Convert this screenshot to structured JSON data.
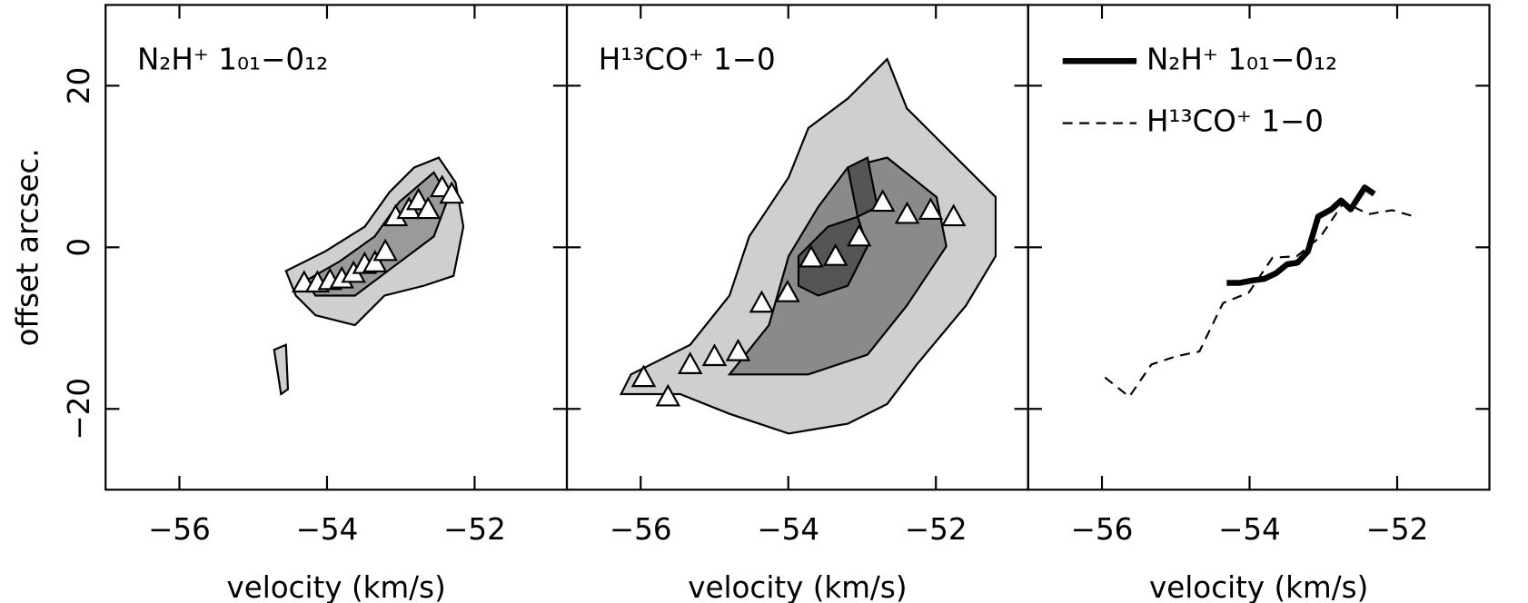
{
  "chart_data": [
    {
      "type": "scatter",
      "annotation": "N₂H⁺ 1₀₁−0₁₂",
      "xlabel": "velocity (km/s)",
      "ylabel": "offset arcsec.",
      "x": [
        -54.31,
        -54.13,
        -53.96,
        -53.8,
        -53.64,
        -53.49,
        -53.35,
        -53.21,
        -53.07,
        -52.89,
        -52.76,
        -52.63,
        -52.44,
        -52.31
      ],
      "values": [
        -4.4,
        -4.4,
        -4.1,
        -3.9,
        -3.2,
        -2.1,
        -1.9,
        -0.5,
        3.8,
        4.7,
        5.8,
        4.7,
        7.4,
        6.6
      ],
      "marker": "triangle",
      "color": "#ffffff",
      "xlim": [
        -57,
        -50.75
      ],
      "xticks": [
        {
          "value": -56,
          "label": "−56"
        },
        {
          "value": -54,
          "label": "−54"
        },
        {
          "value": -52,
          "label": "−52"
        }
      ],
      "ylim": [
        -30,
        30
      ],
      "yticks": [
        {
          "value": -20,
          "label": "−20"
        },
        0,
        20
      ]
    },
    {
      "type": "scatter",
      "annotation": "H¹³CO⁺ 1−0",
      "xlabel": "velocity (km/s)",
      "x": [
        -55.96,
        -55.63,
        -55.33,
        -55.0,
        -54.68,
        -54.36,
        -54.01,
        -53.69,
        -53.36,
        -53.04,
        -52.72,
        -52.39,
        -52.07,
        -51.76
      ],
      "values": [
        -16.1,
        -18.5,
        -14.5,
        -13.5,
        -12.9,
        -6.9,
        -5.6,
        -1.3,
        -1.1,
        1.3,
        5.6,
        4.1,
        4.6,
        3.8
      ],
      "marker": "triangle",
      "color": "#ffffff",
      "xlim": [
        -57,
        -50.75
      ],
      "xticks": [
        {
          "value": -56,
          "label": "−56"
        },
        {
          "value": -54,
          "label": "−54"
        },
        {
          "value": -52,
          "label": "−52"
        }
      ],
      "ylim": [
        -30,
        30
      ],
      "yticks": [
        -20,
        0,
        20
      ]
    },
    {
      "type": "line",
      "xlabel": "velocity (km/s)",
      "legend": "upper left",
      "series": [
        {
          "name": "N₂H⁺ 1₀₁−0₁₂",
          "color": "#000000",
          "linewidth": 6,
          "dash": "solid",
          "x": [
            -54.31,
            -54.13,
            -53.96,
            -53.8,
            -53.64,
            -53.49,
            -53.35,
            -53.21,
            -53.07,
            -52.89,
            -52.76,
            -52.63,
            -52.44,
            -52.31
          ],
          "values": [
            -4.4,
            -4.4,
            -4.1,
            -3.9,
            -3.2,
            -2.1,
            -1.9,
            -0.5,
            3.8,
            4.7,
            5.8,
            4.7,
            7.4,
            6.6
          ]
        },
        {
          "name": "H¹³CO⁺ 1−0",
          "color": "#000000",
          "linewidth": 2,
          "dash": "dashed",
          "x": [
            -55.96,
            -55.63,
            -55.33,
            -55.0,
            -54.68,
            -54.36,
            -54.01,
            -53.69,
            -53.36,
            -53.04,
            -52.72,
            -52.39,
            -52.07,
            -51.76
          ],
          "values": [
            -16.1,
            -18.5,
            -14.5,
            -13.5,
            -12.9,
            -6.9,
            -5.6,
            -1.3,
            -1.1,
            1.3,
            5.6,
            4.1,
            4.6,
            3.8
          ]
        }
      ],
      "xlim": [
        -57,
        -50.75
      ],
      "xticks": [
        {
          "value": -56,
          "label": "−56"
        },
        {
          "value": -54,
          "label": "−54"
        },
        {
          "value": -52,
          "label": "−52"
        }
      ],
      "ylim": [
        -30,
        30
      ],
      "yticks": [
        -20,
        0,
        20
      ]
    }
  ]
}
